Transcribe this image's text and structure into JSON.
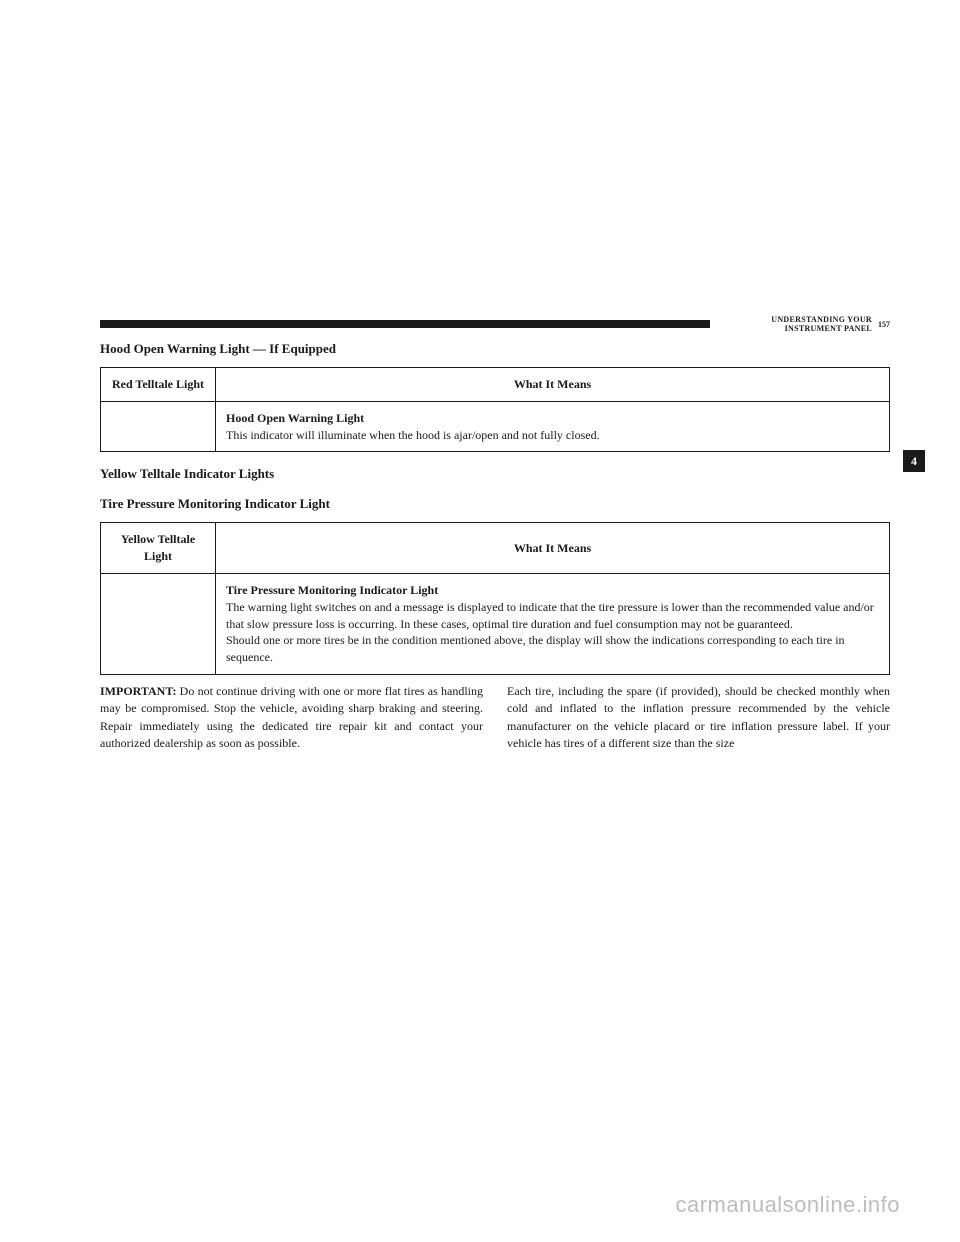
{
  "header": {
    "section_label": "UNDERSTANDING YOUR INSTRUMENT PANEL",
    "page_number": "157"
  },
  "side_tab": "4",
  "section1": {
    "title": "Hood Open Warning Light — If Equipped",
    "table": {
      "head_left": "Red Telltale Light",
      "head_right": "What It Means",
      "body_title": "Hood Open Warning Light",
      "body_text": "This indicator will illuminate when the hood is ajar/open and not fully closed."
    }
  },
  "section2": {
    "heading": "Yellow Telltale Indicator Lights",
    "subtitle": "Tire Pressure Monitoring Indicator Light",
    "table": {
      "head_left": "Yellow Telltale Light",
      "head_right": "What It Means",
      "body_title": "Tire Pressure Monitoring Indicator Light",
      "body_p1": "The warning light switches on and a message is displayed to indicate that the tire pressure is lower than the recommended value and/or that slow pressure loss is occurring. In these cases, optimal tire duration and fuel consumption may not be guaranteed.",
      "body_p2": "Should one or more tires be in the condition mentioned above, the display will show the indications corresponding to each tire in sequence."
    }
  },
  "columns": {
    "left": {
      "important_label": "IMPORTANT:",
      "text": " Do not continue driving with one or more flat tires as handling may be compromised. Stop the vehicle, avoiding sharp braking and steering. Repair immediately using the dedicated tire repair kit and contact your authorized dealership as soon as possible."
    },
    "right": "Each tire, including the spare (if provided), should be checked monthly when cold and inflated to the inflation pressure recommended by the vehicle manufacturer on the vehicle placard or tire inflation pressure label. If your vehicle has tires of a different size than the size"
  },
  "watermark": "carmanualsonline.info"
}
